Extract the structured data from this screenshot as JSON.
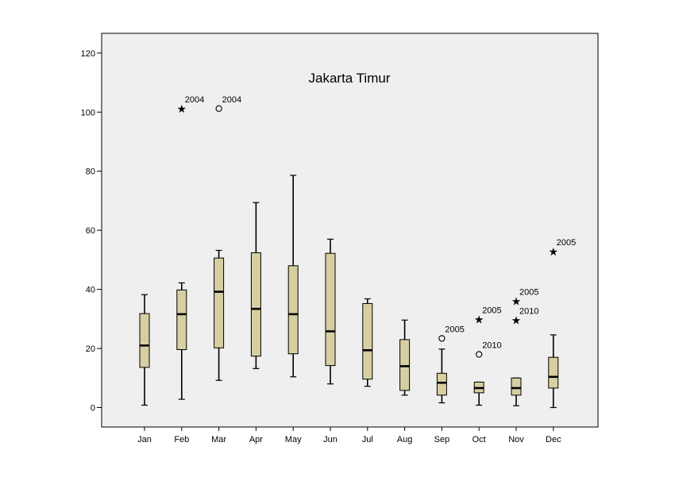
{
  "chart_data": {
    "type": "boxplot",
    "title": "Jakarta Timur",
    "xlabel": "",
    "ylabel": "",
    "ylim": [
      -6,
      126
    ],
    "yticks": [
      0,
      20,
      40,
      60,
      80,
      100,
      120
    ],
    "grid": false,
    "legend": "none",
    "colors": {
      "box_fill": "#d7cfa0",
      "plot_bg": "#efefef",
      "stroke": "#000000"
    },
    "categories": [
      "Jan",
      "Feb",
      "Mar",
      "Apr",
      "May",
      "Jun",
      "Jul",
      "Aug",
      "Sep",
      "Oct",
      "Nov",
      "Dec"
    ],
    "boxes": [
      {
        "min": 0.8,
        "q1": 13.6,
        "median": 21,
        "q3": 31.8,
        "max": 38.2
      },
      {
        "min": 2.8,
        "q1": 19.6,
        "median": 31.6,
        "q3": 39.8,
        "max": 42.2
      },
      {
        "min": 9.2,
        "q1": 20.2,
        "median": 39.2,
        "q3": 50.6,
        "max": 53.2
      },
      {
        "min": 13.2,
        "q1": 17.4,
        "median": 33.4,
        "q3": 52.4,
        "max": 69.4
      },
      {
        "min": 10.4,
        "q1": 18.2,
        "median": 31.6,
        "q3": 48,
        "max": 78.6
      },
      {
        "min": 8,
        "q1": 14.2,
        "median": 25.8,
        "q3": 52.2,
        "max": 57
      },
      {
        "min": 7.2,
        "q1": 9.6,
        "median": 19.4,
        "q3": 35.2,
        "max": 36.8
      },
      {
        "min": 4.2,
        "q1": 5.8,
        "median": 14,
        "q3": 23,
        "max": 29.6
      },
      {
        "min": 1.6,
        "q1": 4.2,
        "median": 8.4,
        "q3": 11.6,
        "max": 19.8
      },
      {
        "min": 0.8,
        "q1": 5,
        "median": 6.6,
        "q3": 8.6,
        "max": 8.6
      },
      {
        "min": 0.6,
        "q1": 4.2,
        "median": 6.6,
        "q3": 10,
        "max": 10
      },
      {
        "min": 0,
        "q1": 6.6,
        "median": 10.4,
        "q3": 17,
        "max": 24.6
      }
    ],
    "outliers": [
      {
        "category": "Feb",
        "value": 101.2,
        "marker": "star",
        "label": "2004"
      },
      {
        "category": "Mar",
        "value": 101.2,
        "marker": "circle",
        "label": "2004"
      },
      {
        "category": "Sep",
        "value": 23.4,
        "marker": "circle",
        "label": "2005"
      },
      {
        "category": "Oct",
        "value": 29.8,
        "marker": "star",
        "label": "2005"
      },
      {
        "category": "Oct",
        "value": 18,
        "marker": "circle",
        "label": "2010"
      },
      {
        "category": "Nov",
        "value": 36,
        "marker": "star",
        "label": "2005"
      },
      {
        "category": "Nov",
        "value": 29.6,
        "marker": "star",
        "label": "2010"
      },
      {
        "category": "Dec",
        "value": 52.8,
        "marker": "star",
        "label": "2005"
      }
    ]
  }
}
